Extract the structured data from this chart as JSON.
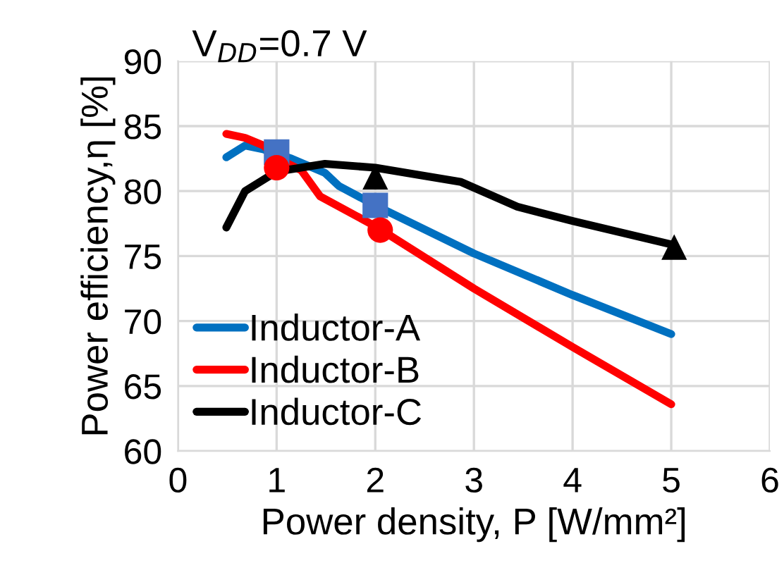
{
  "chart_data": {
    "type": "line",
    "title": "V$_{DD}$=0.7 V",
    "xlabel": "Power density, P [W/mm²]",
    "ylabel": "Power efficiency,η [%]",
    "xlim": [
      0,
      6
    ],
    "xticks": [
      0,
      1,
      2,
      3,
      4,
      5,
      6
    ],
    "ylim": [
      60,
      90
    ],
    "yticks": [
      60,
      65,
      70,
      75,
      80,
      85,
      90
    ],
    "grid": true,
    "legend": "bottom left",
    "marker": "none",
    "series": [
      {
        "name": "Inductor-A",
        "color": "#0070c0",
        "x": [
          0.49,
          0.68,
          0.87,
          1.15,
          1.49,
          1.63,
          2.0,
          3.0,
          4.0,
          5.0
        ],
        "values": [
          82.6,
          83.5,
          83.2,
          82.5,
          81.4,
          80.4,
          78.9,
          75.2,
          72.0,
          69.0
        ]
      },
      {
        "name": "Inductor-B",
        "color": "#ff0000",
        "x": [
          0.49,
          0.68,
          0.87,
          1.01,
          1.25,
          1.44,
          2.0,
          3.0,
          4.0,
          5.0
        ],
        "values": [
          84.4,
          84.1,
          83.5,
          82.5,
          81.6,
          79.6,
          77.3,
          72.5,
          68.0,
          63.6
        ]
      },
      {
        "name": "Inductor-C",
        "color": "#000000",
        "x": [
          0.49,
          0.68,
          1.0,
          1.49,
          2.0,
          2.87,
          3.2,
          3.44,
          4.0,
          5.0
        ],
        "values": [
          77.2,
          80.0,
          81.5,
          82.1,
          81.8,
          80.7,
          79.6,
          78.8,
          77.7,
          75.9
        ]
      },
      {
        "type": "scatter",
        "color": "#4472c4",
        "marker": "square",
        "x": [
          1.0,
          2.0
        ],
        "values": [
          83.0,
          78.9
        ]
      },
      {
        "type": "scatter",
        "color": "#ff0000",
        "marker": "circle",
        "x": [
          1.0,
          2.05
        ],
        "values": [
          81.8,
          77.0
        ]
      },
      {
        "type": "scatter",
        "color": "#000000",
        "marker": "triangle",
        "x": [
          2.0,
          5.03
        ],
        "values": [
          81.1,
          75.7
        ]
      }
    ]
  }
}
